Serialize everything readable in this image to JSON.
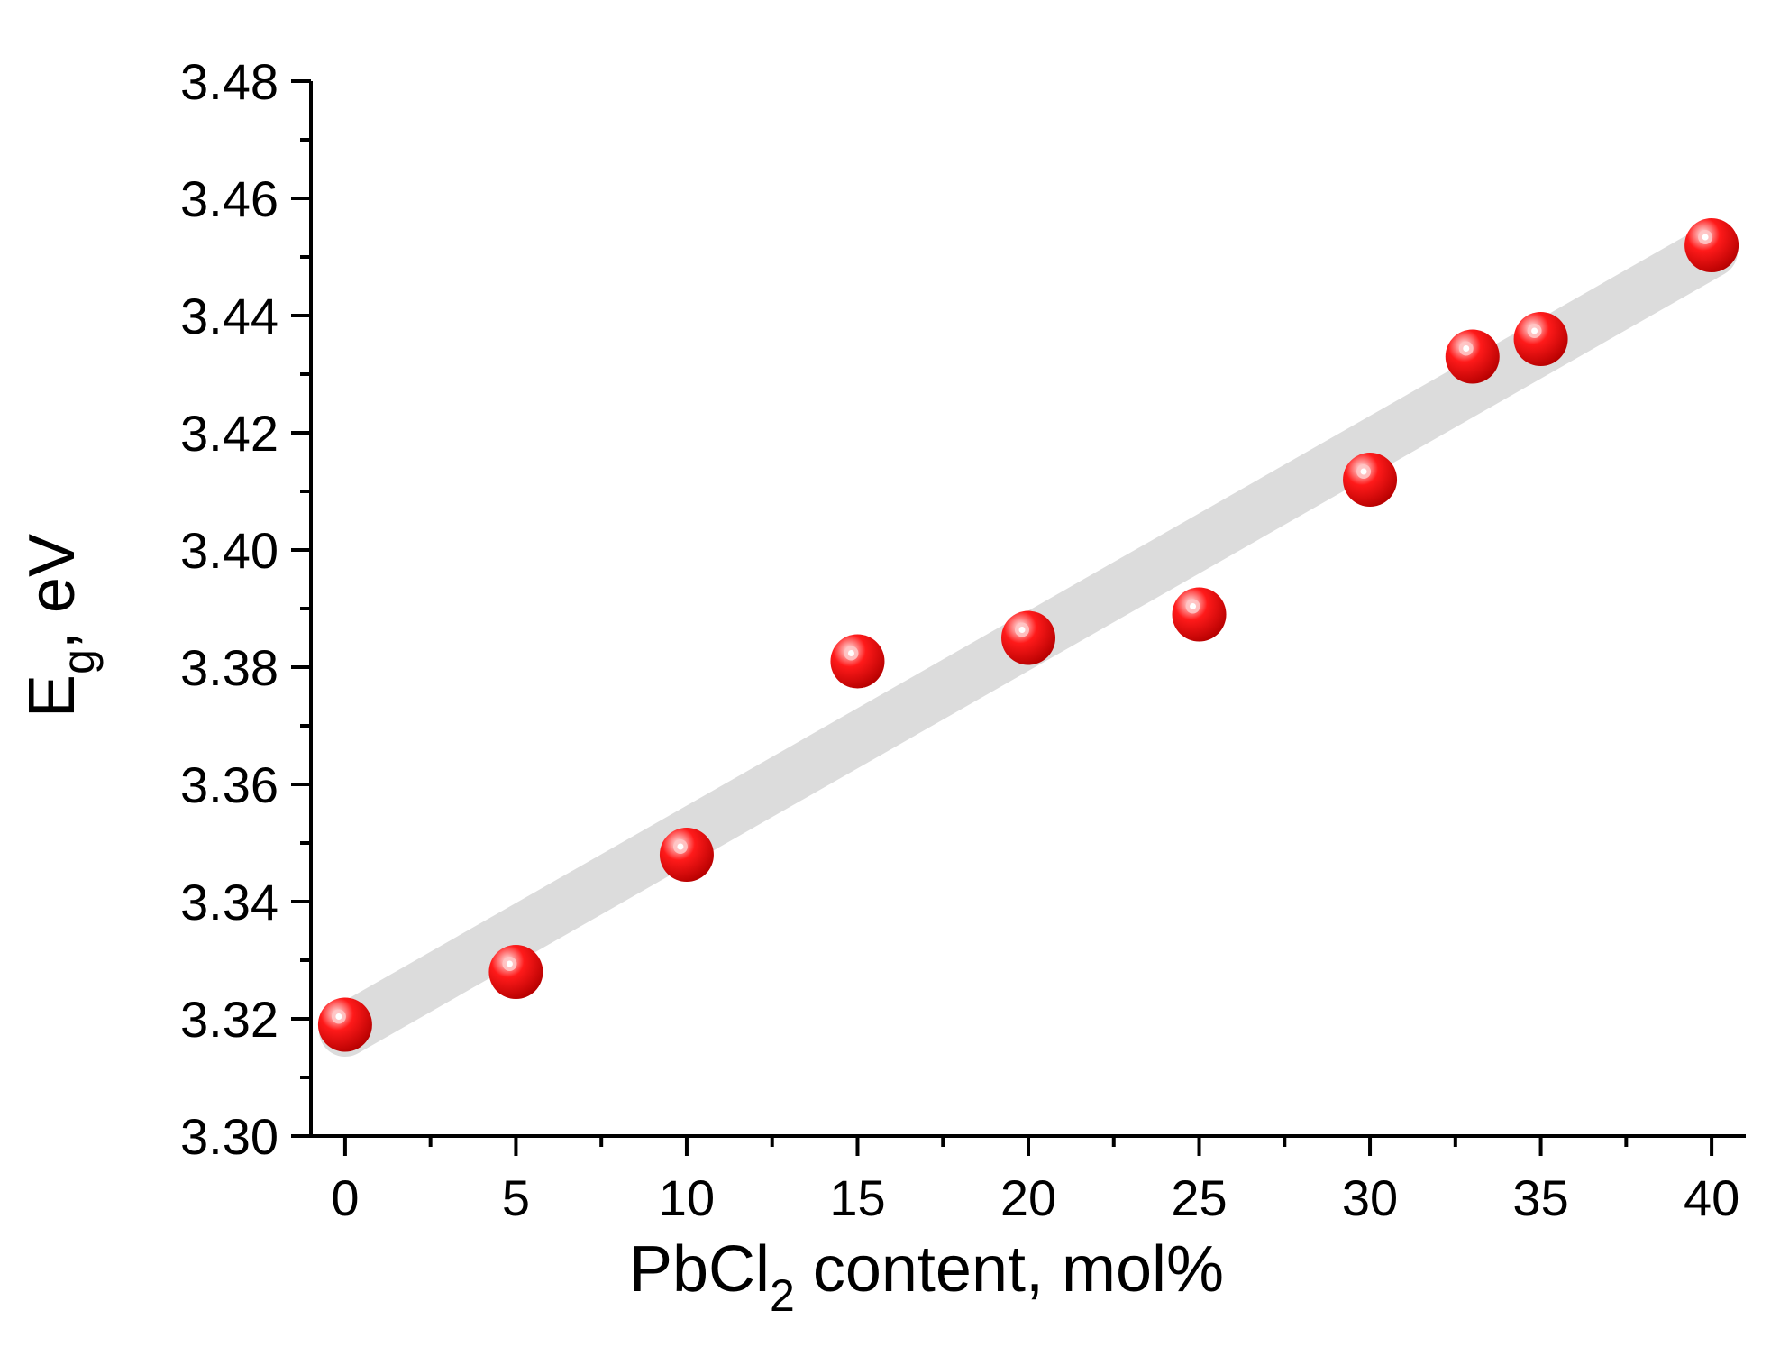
{
  "colors": {
    "axis": "#000000",
    "marker": "#ff0000",
    "marker_dark": "#b30000",
    "marker_highlight": "#ffffff",
    "trend_band": "#dcdcdc"
  },
  "chart_data": {
    "type": "scatter",
    "title": "",
    "xlabel": {
      "main": "PbCl",
      "sub": "2",
      "rest": " content, mol%"
    },
    "ylabel": {
      "main": "E",
      "sub": "g",
      "rest": ", eV"
    },
    "xlim": [
      -1,
      41
    ],
    "ylim": [
      3.3,
      3.48
    ],
    "xticks": [
      0,
      5,
      10,
      15,
      20,
      25,
      30,
      35,
      40
    ],
    "xtick_labels": [
      "0",
      "5",
      "10",
      "15",
      "20",
      "25",
      "30",
      "35",
      "40"
    ],
    "yticks": [
      3.3,
      3.32,
      3.34,
      3.36,
      3.38,
      3.4,
      3.42,
      3.44,
      3.46,
      3.48
    ],
    "ytick_labels": [
      "3.30",
      "3.32",
      "3.34",
      "3.36",
      "3.38",
      "3.40",
      "3.42",
      "3.44",
      "3.46",
      "3.48"
    ],
    "grid": false,
    "legend": "none",
    "series": [
      {
        "x": [
          0,
          5,
          10,
          15,
          20,
          25,
          30,
          33,
          35,
          40
        ],
        "y": [
          3.319,
          3.328,
          3.348,
          3.381,
          3.385,
          3.389,
          3.412,
          3.433,
          3.436,
          3.452
        ]
      }
    ],
    "trend_line": {
      "x": [
        0,
        40
      ],
      "y": [
        3.318,
        3.451
      ]
    }
  }
}
